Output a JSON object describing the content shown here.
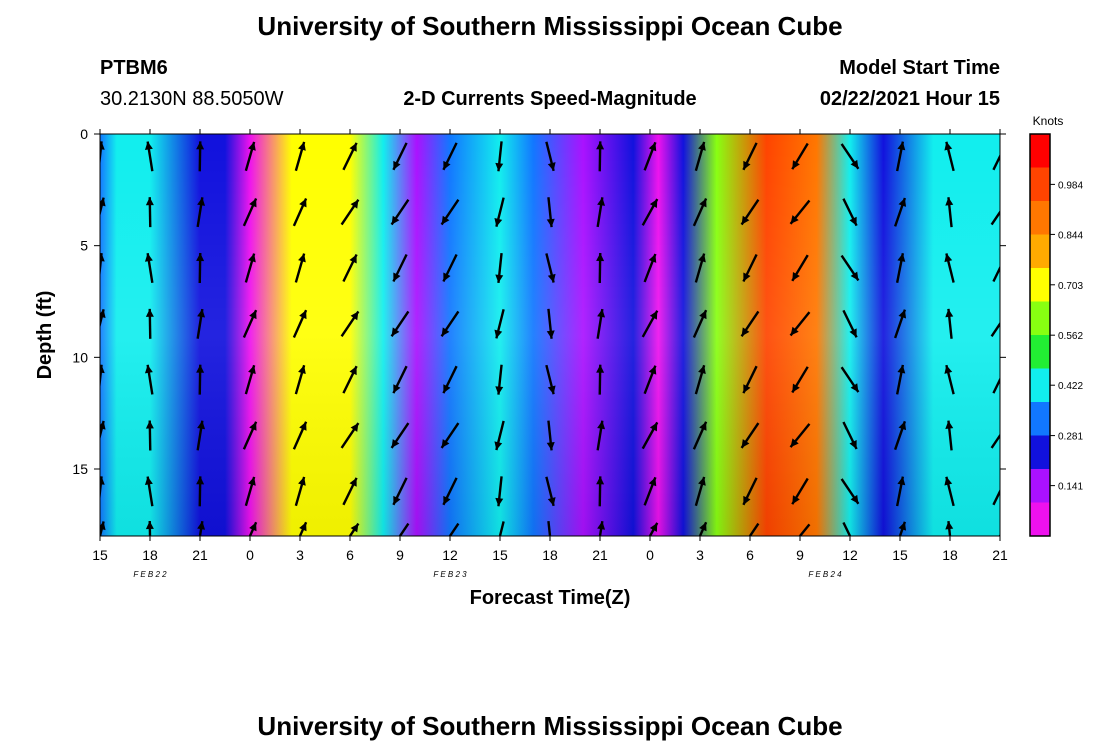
{
  "header": {
    "title": "University of Southern Mississippi Ocean Cube",
    "station": "PTBM6",
    "coords": "30.2130N 88.5050W",
    "product": "2-D Currents Speed-Magnitude",
    "model_label": "Model Start Time",
    "model_time": "02/22/2021 Hour 15"
  },
  "footer": {
    "title": "University of Southern Mississippi Ocean Cube"
  },
  "chart_data": {
    "type": "heatmap",
    "title": "2-D Currents Speed-Magnitude",
    "xlabel": "Forecast Time(Z)",
    "ylabel": "Depth (ft)",
    "x_ticks": [
      "15",
      "18",
      "21",
      "0",
      "3",
      "6",
      "9",
      "12",
      "15",
      "18",
      "21",
      "0",
      "3",
      "6",
      "9",
      "12",
      "15",
      "18",
      "21"
    ],
    "x_range_hours": [
      0,
      54
    ],
    "date_labels": [
      {
        "label": "FEB 22",
        "hour": 3
      },
      {
        "label": "FEB 23",
        "hour": 21
      },
      {
        "label": "FEB 24",
        "hour": 43.5
      }
    ],
    "y_ticks": [
      0,
      5,
      10,
      15
    ],
    "ylim": [
      18,
      0
    ],
    "colorbar": {
      "unit": "Knots",
      "ticks": [
        0.141,
        0.281,
        0.422,
        0.562,
        0.703,
        0.844,
        0.984
      ],
      "range": [
        0.0,
        1.125
      ],
      "colors": [
        "#ee11ee",
        "#aa11ff",
        "#1111dd",
        "#1177ff",
        "#11eeee",
        "#22ee33",
        "#88ff11",
        "#ffff00",
        "#ffaa00",
        "#ff7700",
        "#ff4400",
        "#ff0000"
      ]
    },
    "speed_bands": [
      {
        "hour": 0,
        "speed": 0.3
      },
      {
        "hour": 1,
        "speed": 0.45
      },
      {
        "hour": 3,
        "speed": 0.4
      },
      {
        "hour": 6,
        "speed": 0.28
      },
      {
        "hour": 7.5,
        "speed": 0.2
      },
      {
        "hour": 9,
        "speed": 0.06
      },
      {
        "hour": 11.5,
        "speed": 0.72
      },
      {
        "hour": 15,
        "speed": 0.7
      },
      {
        "hour": 17,
        "speed": 0.45
      },
      {
        "hour": 19,
        "speed": 0.12
      },
      {
        "hour": 21,
        "speed": 0.32
      },
      {
        "hour": 24,
        "speed": 0.46
      },
      {
        "hour": 26,
        "speed": 0.36
      },
      {
        "hour": 29,
        "speed": 0.18
      },
      {
        "hour": 32,
        "speed": 0.2
      },
      {
        "hour": 33.5,
        "speed": 0.06
      },
      {
        "hour": 35,
        "speed": 0.22
      },
      {
        "hour": 37,
        "speed": 0.62
      },
      {
        "hour": 40,
        "speed": 0.95
      },
      {
        "hour": 43,
        "speed": 0.85
      },
      {
        "hour": 45,
        "speed": 0.45
      },
      {
        "hour": 47,
        "speed": 0.2
      },
      {
        "hour": 50,
        "speed": 0.42
      },
      {
        "hour": 54,
        "speed": 0.4
      }
    ],
    "vector_columns": [
      {
        "hour": 0,
        "angle_deg": 10
      },
      {
        "hour": 3,
        "angle_deg": -5
      },
      {
        "hour": 6,
        "angle_deg": 5
      },
      {
        "hour": 9,
        "angle_deg": 20
      },
      {
        "hour": 12,
        "angle_deg": 20
      },
      {
        "hour": 15,
        "angle_deg": 30
      },
      {
        "hour": 18,
        "angle_deg": 210
      },
      {
        "hour": 21,
        "angle_deg": 210
      },
      {
        "hour": 24,
        "angle_deg": 190
      },
      {
        "hour": 27,
        "angle_deg": 170
      },
      {
        "hour": 30,
        "angle_deg": 5
      },
      {
        "hour": 33,
        "angle_deg": 25
      },
      {
        "hour": 36,
        "angle_deg": 20
      },
      {
        "hour": 39,
        "angle_deg": 210
      },
      {
        "hour": 42,
        "angle_deg": 215
      },
      {
        "hour": 45,
        "angle_deg": 150
      },
      {
        "hour": 48,
        "angle_deg": 15
      },
      {
        "hour": 51,
        "angle_deg": -10
      },
      {
        "hour": 54,
        "angle_deg": 30
      }
    ]
  }
}
